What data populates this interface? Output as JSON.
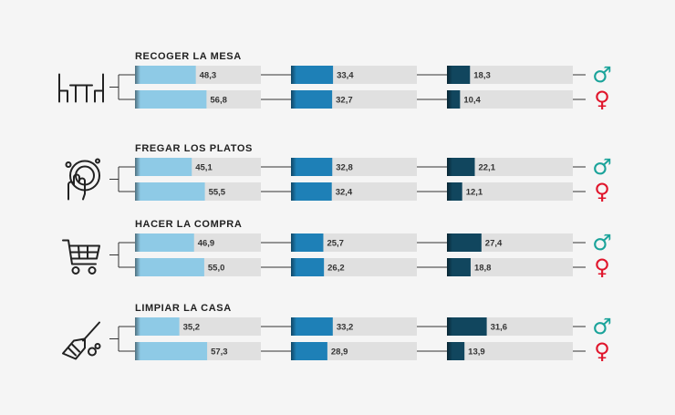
{
  "colors": {
    "background": "#f5f5f5",
    "track": "#e0e0e0",
    "col1": "#8ecae6",
    "col2": "#1e80b7",
    "col3": "#11465e",
    "connector": "#333333",
    "male": "#1aa39a",
    "female": "#e0152b"
  },
  "legend": {
    "male_symbol": "♂",
    "female_symbol": "♀"
  },
  "chart_data": {
    "type": "bar",
    "xlim": [
      0,
      100
    ],
    "categories": [
      {
        "title": "RECOGER LA MESA",
        "icon": "table-chairs-icon",
        "rows": [
          {
            "gender": "male",
            "values": [
              48.3,
              33.4,
              18.3
            ],
            "labels": [
              "48,3",
              "33,4",
              "18,3"
            ]
          },
          {
            "gender": "female",
            "values": [
              56.8,
              32.7,
              10.4
            ],
            "labels": [
              "56,8",
              "32,7",
              "10,4"
            ]
          }
        ]
      },
      {
        "title": "FREGAR LOS PLATOS",
        "icon": "washing-plate-icon",
        "rows": [
          {
            "gender": "male",
            "values": [
              45.1,
              32.8,
              22.1
            ],
            "labels": [
              "45,1",
              "32,8",
              "22,1"
            ]
          },
          {
            "gender": "female",
            "values": [
              55.5,
              32.4,
              12.1
            ],
            "labels": [
              "55,5",
              "32,4",
              "12,1"
            ]
          }
        ]
      },
      {
        "title": "HACER LA COMPRA",
        "icon": "shopping-cart-icon",
        "rows": [
          {
            "gender": "male",
            "values": [
              46.9,
              25.7,
              27.4
            ],
            "labels": [
              "46,9",
              "25,7",
              "27,4"
            ]
          },
          {
            "gender": "female",
            "values": [
              55.0,
              26.2,
              18.8
            ],
            "labels": [
              "55,0",
              "26,2",
              "18,8"
            ]
          }
        ]
      },
      {
        "title": "LIMPIAR LA CASA",
        "icon": "broom-icon",
        "rows": [
          {
            "gender": "male",
            "values": [
              35.2,
              33.2,
              31.6
            ],
            "labels": [
              "35,2",
              "33,2",
              "31,6"
            ]
          },
          {
            "gender": "female",
            "values": [
              57.3,
              28.9,
              13.9
            ],
            "labels": [
              "57,3",
              "28,9",
              "13,9"
            ]
          }
        ]
      }
    ]
  }
}
